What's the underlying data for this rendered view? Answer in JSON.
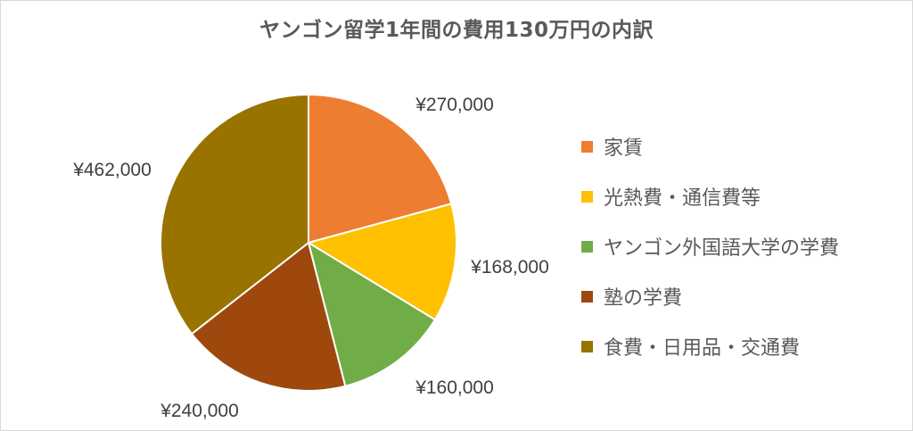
{
  "chart_data": {
    "type": "pie",
    "title": "ヤンゴン留学1年間の費用130万円の内訳",
    "categories": [
      "家賃",
      "光熱費・通信費等",
      "ヤンゴン外国語大学の学費",
      "塾の学費",
      "食費・日用品・交通費"
    ],
    "values": [
      270000,
      168000,
      160000,
      240000,
      462000
    ],
    "data_labels": [
      "¥270,000",
      "¥168,000",
      "¥160,000",
      "¥240,000",
      "¥462,000"
    ],
    "colors": [
      "#ED7D31",
      "#FFC000",
      "#70AD47",
      "#9E480E",
      "#997300"
    ],
    "legend_position": "right",
    "start_angle": "12 o'clock, clockwise"
  }
}
